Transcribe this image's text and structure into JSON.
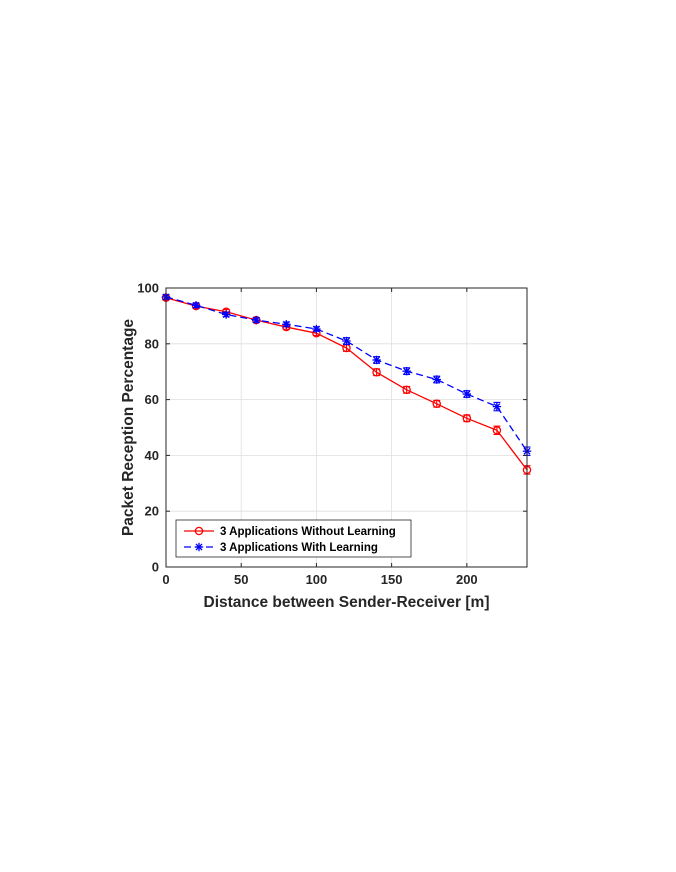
{
  "chart_data": {
    "type": "line",
    "xlabel": "Distance between Sender-Receiver [m]",
    "ylabel": "Packet Reception Percentage",
    "xlim": [
      0,
      240
    ],
    "ylim": [
      0,
      100
    ],
    "xticks": [
      0,
      50,
      100,
      150,
      200
    ],
    "yticks": [
      0,
      20,
      40,
      60,
      80,
      100
    ],
    "grid": true,
    "legend_position": "bottom-left",
    "x": [
      0,
      20,
      40,
      60,
      80,
      100,
      120,
      140,
      160,
      180,
      200,
      220,
      240
    ],
    "series": [
      {
        "name": "3 Applications Without Learning",
        "values": [
          96.5,
          93.5,
          91.5,
          88.5,
          86,
          83.8,
          78.5,
          69.8,
          63.5,
          58.5,
          53.3,
          49,
          34.8
        ],
        "error": [
          0.8,
          0.8,
          0.8,
          0.8,
          0.8,
          0.8,
          1.2,
          1.2,
          1.2,
          1.2,
          1.2,
          1.5,
          1.5
        ],
        "color": "#ff0000",
        "line_style": "solid",
        "marker": "circle"
      },
      {
        "name": "3 Applications With Learning",
        "values": [
          96.8,
          93.8,
          90.5,
          88.5,
          87,
          85.3,
          81,
          74.2,
          70.2,
          67.2,
          62,
          57.5,
          41.5
        ],
        "error": [
          0.8,
          0.8,
          0.8,
          0.8,
          0.8,
          0.8,
          1.2,
          1.2,
          1.2,
          1.2,
          1.2,
          1.5,
          1.5
        ],
        "color": "#0000ff",
        "line_style": "dashed",
        "marker": "asterisk"
      }
    ]
  }
}
